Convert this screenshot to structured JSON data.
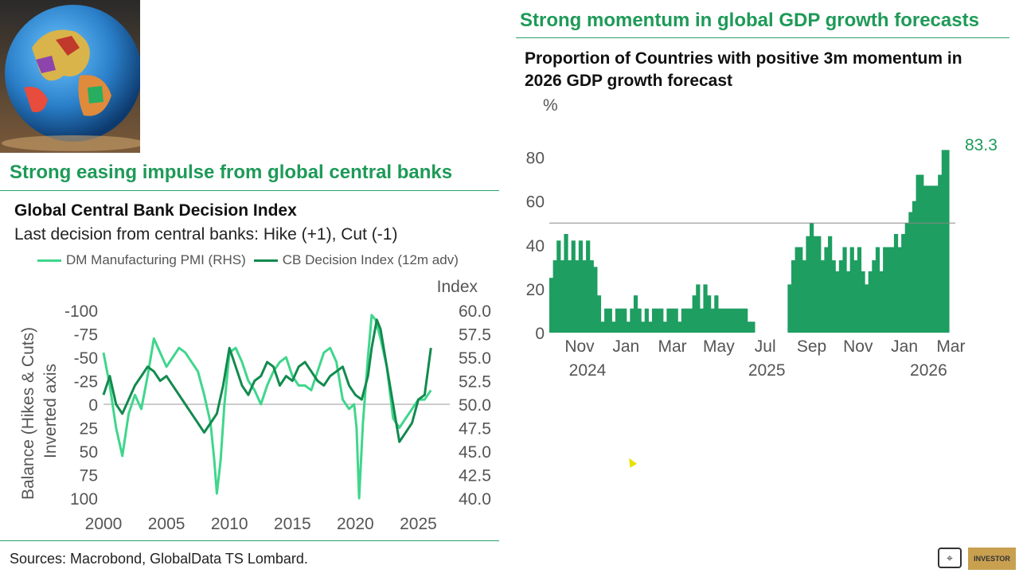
{
  "left": {
    "section_title": "Strong easing impulse from global central banks",
    "chart_title": "Global Central Bank Decision Index",
    "chart_subtitle": "Last decision from central banks: Hike (+1), Cut (-1)",
    "legend": [
      "DM Manufacturing PMI (RHS)",
      "CB Decision Index (12m adv)"
    ],
    "right_axis_title": "Index",
    "left_axis_title_1": "Balance (Hikes & Cuts)",
    "left_axis_title_2": "Inverted axis"
  },
  "right": {
    "section_title": "Strong momentum in global GDP growth forecasts",
    "chart_title_line1": "Proportion of Countries with positive 3m momentum in",
    "chart_title_line2": "2026 GDP growth forecast",
    "unit": "%",
    "last_value_label": "83.3"
  },
  "sources": "Sources: Macrobond, GlobalData TS Lombard.",
  "brand_label": "INVESTOR",
  "colors": {
    "pmi": "#3fd68c",
    "cb": "#128a4e",
    "area": "#1e9e61",
    "title": "#1e9a58"
  },
  "chart_data": [
    {
      "type": "line",
      "title": "Global Central Bank Decision Index",
      "subtitle": "Last decision from central banks: Hike (+1), Cut (-1)",
      "x_ticks": [
        "2000",
        "2005",
        "2010",
        "2015",
        "2020",
        "2025"
      ],
      "x_range": [
        2000,
        2027.5
      ],
      "left_axis": {
        "label": "Balance (Hikes & Cuts) Inverted axis",
        "inverted": true,
        "range": [
          -100,
          100
        ],
        "ticks": [
          "-100",
          "-75",
          "-50",
          "-25",
          "0",
          "25",
          "50",
          "75",
          "100"
        ]
      },
      "right_axis": {
        "label": "Index",
        "range": [
          40,
          60
        ],
        "ticks": [
          "60.0",
          "57.5",
          "55.0",
          "52.5",
          "50.0",
          "47.5",
          "45.0",
          "42.5",
          "40.0"
        ]
      },
      "series": [
        {
          "name": "DM Manufacturing PMI (RHS)",
          "axis": "right",
          "x": [
            2000.0,
            2000.5,
            2001.0,
            2001.5,
            2002.0,
            2002.5,
            2003.0,
            2003.5,
            2004.0,
            2004.5,
            2005.0,
            2005.5,
            2006.0,
            2006.5,
            2007.0,
            2007.5,
            2008.0,
            2008.5,
            2008.8,
            2009.0,
            2009.3,
            2009.6,
            2010.0,
            2010.5,
            2011.0,
            2011.5,
            2012.0,
            2012.5,
            2013.0,
            2013.5,
            2014.0,
            2014.5,
            2015.0,
            2015.5,
            2016.0,
            2016.5,
            2017.0,
            2017.5,
            2018.0,
            2018.5,
            2019.0,
            2019.5,
            2019.9,
            2020.1,
            2020.3,
            2020.6,
            2021.0,
            2021.3,
            2021.6,
            2022.0,
            2022.5,
            2023.0,
            2023.5,
            2024.0,
            2024.5,
            2025.0,
            2025.5,
            2026.0
          ],
          "values": [
            55.5,
            52.0,
            47.5,
            44.5,
            49.0,
            51.0,
            49.5,
            53.0,
            57.0,
            55.5,
            54.0,
            55.0,
            56.0,
            55.5,
            54.5,
            53.5,
            51.0,
            48.0,
            44.0,
            40.5,
            44.0,
            50.0,
            55.5,
            56.0,
            54.5,
            52.5,
            51.5,
            50.0,
            52.0,
            53.5,
            54.5,
            55.0,
            53.0,
            52.0,
            52.0,
            51.5,
            53.5,
            55.5,
            56.0,
            54.5,
            50.5,
            49.5,
            50.0,
            47.5,
            40.0,
            48.0,
            55.0,
            59.5,
            59.0,
            57.0,
            54.0,
            48.5,
            47.5,
            48.5,
            49.5,
            50.5,
            50.5,
            51.5
          ]
        },
        {
          "name": "CB Decision Index (12m adv)",
          "axis": "left",
          "x": [
            2000.0,
            2000.5,
            2001.0,
            2001.5,
            2002.0,
            2002.5,
            2003.0,
            2003.5,
            2004.0,
            2004.5,
            2005.0,
            2005.5,
            2006.0,
            2006.5,
            2007.0,
            2007.5,
            2008.0,
            2008.5,
            2009.0,
            2009.5,
            2010.0,
            2010.5,
            2011.0,
            2011.5,
            2012.0,
            2012.5,
            2013.0,
            2013.5,
            2014.0,
            2014.5,
            2015.0,
            2015.5,
            2016.0,
            2016.5,
            2017.0,
            2017.5,
            2018.0,
            2018.5,
            2019.0,
            2019.5,
            2020.0,
            2020.5,
            2021.0,
            2021.3,
            2021.7,
            2022.0,
            2022.5,
            2023.0,
            2023.5,
            2024.0,
            2024.5,
            2025.0,
            2025.5,
            2026.0
          ],
          "values": [
            -10,
            -30,
            0,
            10,
            -5,
            -20,
            -30,
            -40,
            -35,
            -25,
            -30,
            -20,
            -10,
            0,
            10,
            20,
            30,
            20,
            10,
            -20,
            -60,
            -40,
            -20,
            -10,
            -25,
            -30,
            -45,
            -40,
            -20,
            -30,
            -25,
            -40,
            -45,
            -35,
            -25,
            -20,
            -30,
            -35,
            -40,
            -20,
            -10,
            -5,
            -30,
            -60,
            -90,
            -80,
            -40,
            0,
            40,
            30,
            20,
            -5,
            -10,
            -60
          ]
        }
      ]
    },
    {
      "type": "area",
      "title": "Proportion of Countries with positive 3m momentum in 2026 GDP growth forecast",
      "ylabel": "%",
      "ylim": [
        0,
        90
      ],
      "y_ticks": [
        "0",
        "20",
        "40",
        "60",
        "80"
      ],
      "x_ticks": [
        "Nov",
        "Jan",
        "Mar",
        "May",
        "Jul",
        "Sep",
        "Nov",
        "Jan",
        "Mar"
      ],
      "x_year_labels": [
        "2024",
        "2025",
        "2026"
      ],
      "reference_line": 50,
      "last_value": 83.3,
      "values": [
        25,
        33,
        42,
        33,
        45,
        33,
        42,
        33,
        42,
        33,
        42,
        33,
        30,
        17,
        5,
        11,
        11,
        5,
        11,
        11,
        11,
        5,
        11,
        17,
        11,
        5,
        11,
        5,
        11,
        11,
        11,
        5,
        11,
        11,
        11,
        5,
        11,
        11,
        11,
        17,
        22,
        11,
        22,
        17,
        11,
        17,
        11,
        11,
        11,
        11,
        11,
        11,
        11,
        11,
        5,
        5,
        null,
        null,
        null,
        null,
        null,
        null,
        null,
        null,
        null,
        22,
        33,
        39,
        39,
        33,
        44,
        50,
        44,
        44,
        33,
        39,
        44,
        33,
        28,
        33,
        39,
        28,
        39,
        33,
        39,
        28,
        22,
        28,
        33,
        39,
        28,
        39,
        39,
        39,
        45,
        39,
        45,
        50,
        55,
        60,
        72,
        72,
        67,
        67,
        67,
        67,
        72,
        83.3,
        83.3
      ]
    }
  ]
}
